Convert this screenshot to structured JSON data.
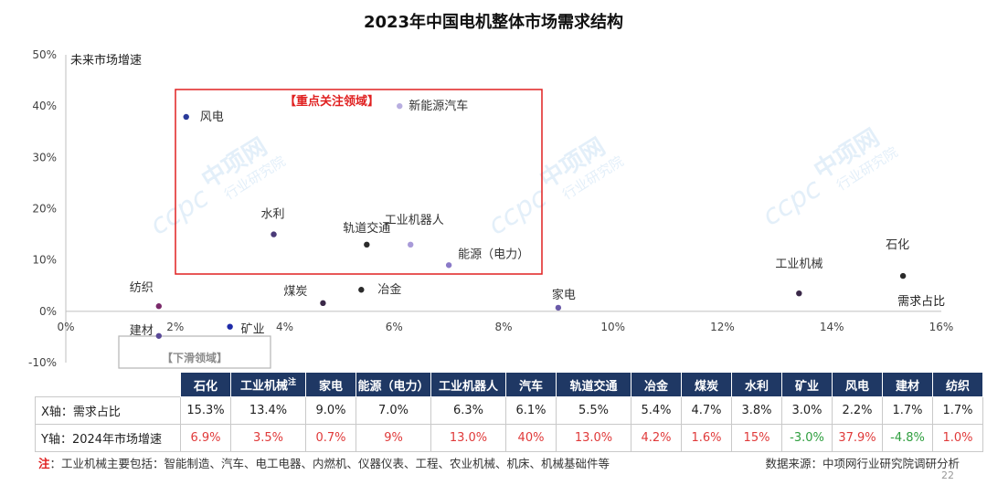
{
  "title": "2023年中国电机整体市场需求结构",
  "watermark": {
    "brand": "ccpc",
    "cn": "中项网",
    "sub": "行业研究院"
  },
  "chart_data": {
    "type": "scatter",
    "ylabel": "未来市场增速",
    "xlabel": "需求占比",
    "xlim": [
      0,
      16
    ],
    "ylim": [
      -10,
      50
    ],
    "x_ticks": [
      "0%",
      "2%",
      "4%",
      "6%",
      "8%",
      "10%",
      "12%",
      "14%",
      "16%"
    ],
    "y_ticks": [
      "50%",
      "40%",
      "30%",
      "20%",
      "10%",
      "0%",
      "-10%"
    ],
    "focus_box_label": "【重点关注领域】",
    "decline_box_label": "【下滑领域】",
    "points": [
      {
        "label": "石化",
        "x": 15.3,
        "y": 6.9,
        "color": "#2b2b2b"
      },
      {
        "label": "工业机械",
        "x": 13.4,
        "y": 3.5,
        "color": "#3a2848"
      },
      {
        "label": "家电",
        "x": 9.0,
        "y": 0.7,
        "color": "#6a5aa8"
      },
      {
        "label": "能源（电力）",
        "x": 7.0,
        "y": 9.0,
        "color": "#8a7ac8"
      },
      {
        "label": "工业机器人",
        "x": 6.3,
        "y": 13.0,
        "color": "#a89ad8"
      },
      {
        "label": "新能源汽车",
        "x": 6.1,
        "y": 40.0,
        "color": "#b8aee0"
      },
      {
        "label": "轨道交通",
        "x": 5.5,
        "y": 13.0,
        "color": "#2b2b2b"
      },
      {
        "label": "冶金",
        "x": 5.4,
        "y": 4.2,
        "color": "#2b2b2b"
      },
      {
        "label": "煤炭",
        "x": 4.7,
        "y": 1.6,
        "color": "#3a2848"
      },
      {
        "label": "水利",
        "x": 3.8,
        "y": 15.0,
        "color": "#4a3a78"
      },
      {
        "label": "矿业",
        "x": 3.0,
        "y": -3.0,
        "color": "#1e2aa8"
      },
      {
        "label": "风电",
        "x": 2.2,
        "y": 37.9,
        "color": "#2a3a9a"
      },
      {
        "label": "建材",
        "x": 1.7,
        "y": -4.8,
        "color": "#5a4a98"
      },
      {
        "label": "纺织",
        "x": 1.7,
        "y": 1.0,
        "color": "#7a2a6a"
      }
    ]
  },
  "table": {
    "columns": [
      "石化",
      "工业机械",
      "家电",
      "能源（电力）",
      "工业机器人",
      "汽车",
      "轨道交通",
      "冶金",
      "煤炭",
      "水利",
      "矿业",
      "风电",
      "建材",
      "纺织"
    ],
    "header_sup": "注",
    "x_row": {
      "label": "X轴：需求占比",
      "values": [
        "15.3%",
        "13.4%",
        "9.0%",
        "7.0%",
        "6.3%",
        "6.1%",
        "5.5%",
        "5.4%",
        "4.7%",
        "3.8%",
        "3.0%",
        "2.2%",
        "1.7%",
        "1.7%"
      ]
    },
    "y_row": {
      "label": "Y轴：2024年市场增速",
      "values": [
        "6.9%",
        "3.5%",
        "0.7%",
        "9%",
        "13.0%",
        "40%",
        "13.0%",
        "4.2%",
        "1.6%",
        "15%",
        "-3.0%",
        "37.9%",
        "-4.8%",
        "1.0%"
      ],
      "colors": [
        "red",
        "red",
        "red",
        "red",
        "red",
        "red",
        "red",
        "red",
        "red",
        "red",
        "green",
        "red",
        "green",
        "red"
      ]
    }
  },
  "note": {
    "label": "注",
    "text": "：工业机械主要包括：智能制造、汽车、电工电器、内燃机、仪器仪表、工程、农业机械、机床、机械基础件等"
  },
  "source": "数据来源：中项网行业研究院调研分析",
  "page_number": "22"
}
